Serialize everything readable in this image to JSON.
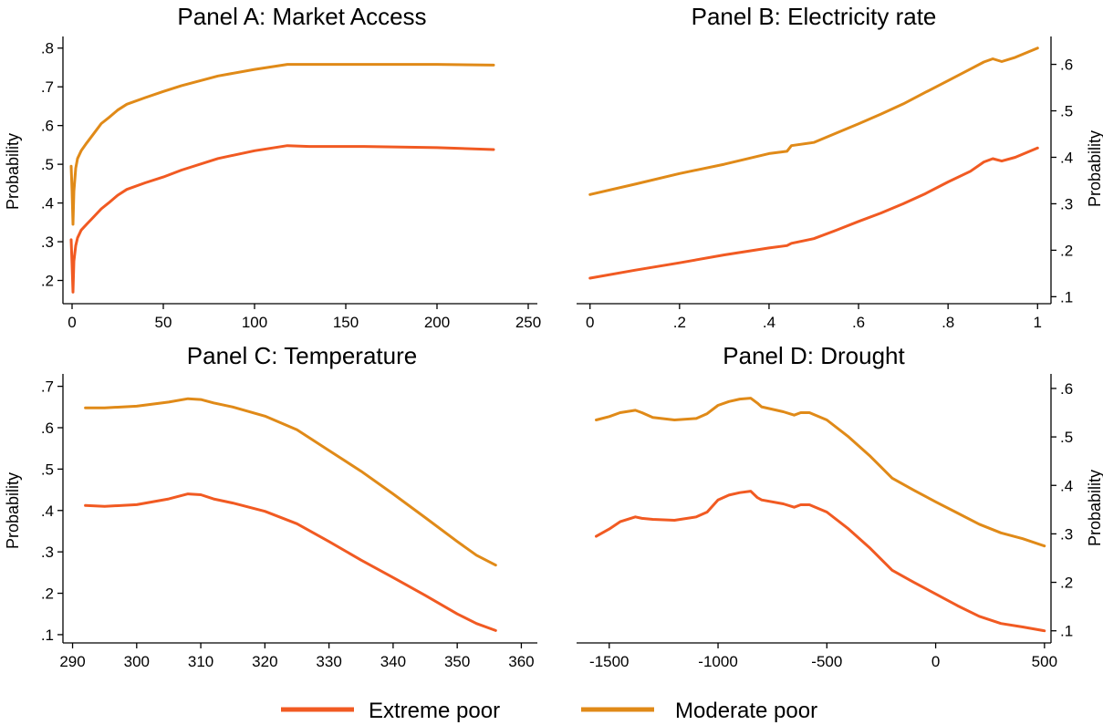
{
  "colors": {
    "extreme": "#f15a22",
    "moderate": "#e08a18",
    "axis": "#000000",
    "background": "#ffffff"
  },
  "legend": {
    "position": "bottom",
    "items": [
      {
        "label": "Extreme poor",
        "color": "#f15a22"
      },
      {
        "label": "Moderate poor",
        "color": "#e08a18"
      }
    ]
  },
  "chart_data": [
    {
      "panel": "A",
      "type": "line",
      "title": "Panel A: Market Access",
      "ylabel": "Probability",
      "y_axis_side": "left",
      "xlim": [
        -5,
        255
      ],
      "ylim": [
        0.14,
        0.83
      ],
      "x_ticks": [
        0,
        50,
        100,
        150,
        200,
        250
      ],
      "x_tick_labels": [
        "0",
        "50",
        "100",
        "150",
        "200",
        "250"
      ],
      "y_ticks": [
        0.2,
        0.3,
        0.4,
        0.5,
        0.6,
        0.7,
        0.8
      ],
      "y_tick_labels": [
        ".2",
        ".3",
        ".4",
        ".5",
        ".6",
        ".7",
        ".8"
      ],
      "series": [
        {
          "name": "Extreme poor",
          "x": [
            -0.5,
            0,
            0.5,
            1,
            2,
            3,
            5,
            8,
            12,
            16,
            20,
            25,
            30,
            40,
            50,
            60,
            80,
            100,
            118,
            130,
            160,
            200,
            231
          ],
          "y": [
            0.305,
            0.24,
            0.17,
            0.25,
            0.29,
            0.31,
            0.33,
            0.345,
            0.365,
            0.385,
            0.4,
            0.42,
            0.435,
            0.452,
            0.467,
            0.485,
            0.515,
            0.535,
            0.548,
            0.546,
            0.546,
            0.543,
            0.538
          ]
        },
        {
          "name": "Moderate poor",
          "x": [
            -0.5,
            0,
            0.5,
            1,
            2,
            3,
            5,
            8,
            12,
            16,
            20,
            25,
            30,
            40,
            50,
            60,
            80,
            100,
            118,
            130,
            160,
            200,
            231
          ],
          "y": [
            0.495,
            0.43,
            0.345,
            0.43,
            0.49,
            0.515,
            0.535,
            0.555,
            0.58,
            0.605,
            0.62,
            0.64,
            0.655,
            0.672,
            0.688,
            0.703,
            0.728,
            0.745,
            0.758,
            0.758,
            0.758,
            0.758,
            0.756
          ]
        }
      ]
    },
    {
      "panel": "B",
      "type": "line",
      "title": "Panel B: Electricity rate",
      "ylabel": "Probability",
      "y_axis_side": "right",
      "xlim": [
        -0.03,
        1.03
      ],
      "ylim": [
        0.085,
        0.66
      ],
      "x_ticks": [
        0,
        0.2,
        0.4,
        0.6,
        0.8,
        1
      ],
      "x_tick_labels": [
        "0",
        ".2",
        ".4",
        ".6",
        ".8",
        "1"
      ],
      "y_ticks": [
        0.1,
        0.2,
        0.3,
        0.4,
        0.5,
        0.6
      ],
      "y_tick_labels": [
        ".1",
        ".2",
        ".3",
        ".4",
        ".5",
        ".6"
      ],
      "series": [
        {
          "name": "Extreme poor",
          "x": [
            0,
            0.1,
            0.2,
            0.3,
            0.4,
            0.44,
            0.45,
            0.5,
            0.55,
            0.6,
            0.65,
            0.7,
            0.75,
            0.8,
            0.85,
            0.88,
            0.9,
            0.92,
            0.95,
            1.0
          ],
          "y": [
            0.14,
            0.157,
            0.173,
            0.19,
            0.205,
            0.21,
            0.215,
            0.225,
            0.243,
            0.262,
            0.28,
            0.3,
            0.322,
            0.347,
            0.37,
            0.39,
            0.397,
            0.392,
            0.4,
            0.42
          ]
        },
        {
          "name": "Moderate poor",
          "x": [
            0,
            0.1,
            0.2,
            0.3,
            0.4,
            0.44,
            0.45,
            0.5,
            0.55,
            0.6,
            0.65,
            0.7,
            0.75,
            0.8,
            0.85,
            0.88,
            0.9,
            0.92,
            0.95,
            1.0
          ],
          "y": [
            0.32,
            0.342,
            0.365,
            0.385,
            0.408,
            0.413,
            0.425,
            0.432,
            0.452,
            0.472,
            0.493,
            0.515,
            0.54,
            0.565,
            0.59,
            0.605,
            0.612,
            0.606,
            0.615,
            0.635
          ]
        }
      ]
    },
    {
      "panel": "C",
      "type": "line",
      "title": "Panel C: Temperature",
      "ylabel": "Probability",
      "y_axis_side": "left",
      "xlim": [
        288.5,
        362.5
      ],
      "ylim": [
        0.08,
        0.73
      ],
      "x_ticks": [
        290,
        300,
        310,
        320,
        330,
        340,
        350,
        360
      ],
      "x_tick_labels": [
        "290",
        "300",
        "310",
        "320",
        "330",
        "340",
        "350",
        "360"
      ],
      "y_ticks": [
        0.1,
        0.2,
        0.3,
        0.4,
        0.5,
        0.6,
        0.7
      ],
      "y_tick_labels": [
        ".1",
        ".2",
        ".3",
        ".4",
        ".5",
        ".6",
        ".7"
      ],
      "series": [
        {
          "name": "Extreme poor",
          "x": [
            292,
            295,
            300,
            305,
            308,
            310,
            312,
            315,
            320,
            325,
            330,
            335,
            340,
            345,
            350,
            353,
            356
          ],
          "y": [
            0.412,
            0.41,
            0.414,
            0.428,
            0.44,
            0.438,
            0.428,
            0.418,
            0.398,
            0.368,
            0.325,
            0.28,
            0.238,
            0.195,
            0.15,
            0.127,
            0.11
          ]
        },
        {
          "name": "Moderate poor",
          "x": [
            292,
            295,
            300,
            305,
            308,
            310,
            312,
            315,
            320,
            325,
            330,
            335,
            340,
            345,
            350,
            353,
            356
          ],
          "y": [
            0.648,
            0.648,
            0.652,
            0.662,
            0.67,
            0.668,
            0.66,
            0.65,
            0.628,
            0.595,
            0.545,
            0.495,
            0.44,
            0.383,
            0.325,
            0.292,
            0.268
          ]
        }
      ]
    },
    {
      "panel": "D",
      "type": "line",
      "title": "Panel D: Drought",
      "ylabel": "Probability",
      "y_axis_side": "right",
      "xlim": [
        -1650,
        530
      ],
      "ylim": [
        0.075,
        0.63
      ],
      "x_ticks": [
        -1500,
        -1000,
        -500,
        0,
        500
      ],
      "x_tick_labels": [
        "-1500",
        "-1000",
        "-500",
        "0",
        "500"
      ],
      "y_ticks": [
        0.1,
        0.2,
        0.3,
        0.4,
        0.5,
        0.6
      ],
      "y_tick_labels": [
        ".1",
        ".2",
        ".3",
        ".4",
        ".5",
        ".6"
      ],
      "series": [
        {
          "name": "Extreme poor",
          "x": [
            -1560,
            -1500,
            -1450,
            -1380,
            -1350,
            -1300,
            -1200,
            -1100,
            -1050,
            -1000,
            -950,
            -900,
            -850,
            -820,
            -800,
            -700,
            -650,
            -620,
            -580,
            -500,
            -400,
            -300,
            -200,
            -100,
            0,
            100,
            200,
            300,
            400,
            500
          ],
          "y": [
            0.295,
            0.31,
            0.325,
            0.335,
            0.332,
            0.33,
            0.328,
            0.335,
            0.345,
            0.37,
            0.38,
            0.385,
            0.388,
            0.375,
            0.37,
            0.362,
            0.355,
            0.36,
            0.36,
            0.345,
            0.31,
            0.27,
            0.225,
            0.2,
            0.176,
            0.152,
            0.13,
            0.115,
            0.108,
            0.1
          ]
        },
        {
          "name": "Moderate poor",
          "x": [
            -1560,
            -1500,
            -1450,
            -1380,
            -1350,
            -1300,
            -1200,
            -1100,
            -1050,
            -1000,
            -950,
            -900,
            -850,
            -820,
            -800,
            -700,
            -650,
            -620,
            -580,
            -500,
            -400,
            -300,
            -200,
            -100,
            0,
            100,
            200,
            300,
            400,
            500
          ],
          "y": [
            0.535,
            0.542,
            0.55,
            0.555,
            0.55,
            0.54,
            0.535,
            0.538,
            0.548,
            0.565,
            0.573,
            0.578,
            0.58,
            0.57,
            0.562,
            0.552,
            0.545,
            0.55,
            0.55,
            0.535,
            0.5,
            0.46,
            0.415,
            0.39,
            0.366,
            0.343,
            0.32,
            0.302,
            0.29,
            0.275
          ]
        }
      ]
    }
  ]
}
